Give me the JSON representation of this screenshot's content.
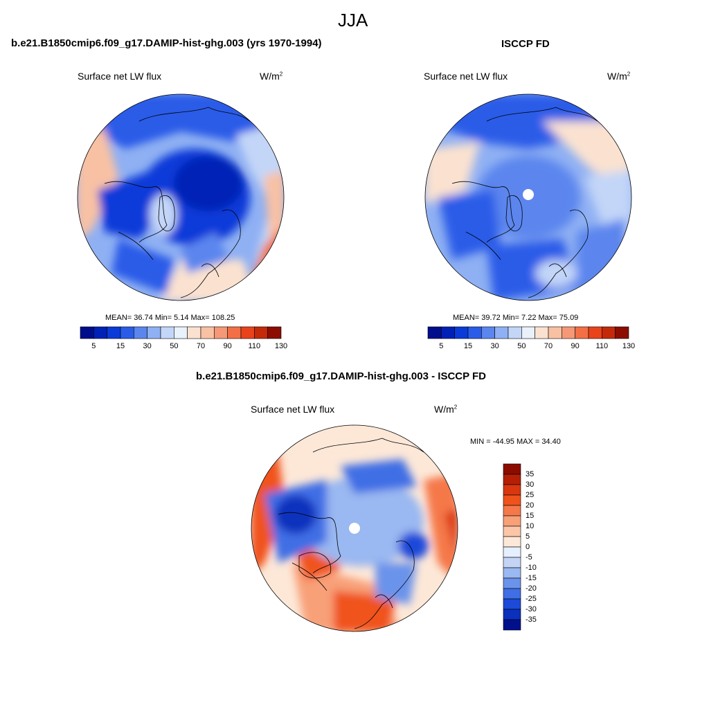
{
  "page_title": "JJA",
  "panels": [
    {
      "title": "b.e21.B1850cmip6.f09_g17.DAMIP-hist-ghg.003 (yrs 1970-1994)",
      "variable": "Surface net LW flux",
      "units": "W/m",
      "units_sup": "2",
      "stats_text": "MEAN=  36.74  Min=   5.14  Max= 108.25",
      "colorbar_ticks": [
        "5",
        "15",
        "30",
        "50",
        "70",
        "90",
        "110",
        "130"
      ]
    },
    {
      "title": "ISCCP FD",
      "variable": "Surface net LW flux",
      "units": "W/m",
      "units_sup": "2",
      "stats_text": "MEAN=  39.72  Min=   7.22  Max=  75.09",
      "colorbar_ticks": [
        "5",
        "15",
        "30",
        "50",
        "70",
        "90",
        "110",
        "130"
      ]
    },
    {
      "title": "b.e21.B1850cmip6.f09_g17.DAMIP-hist-ghg.003 - ISCCP FD",
      "variable": "Surface net LW flux",
      "units": "W/m",
      "units_sup": "2",
      "stats_text": "MIN = -44.95 MAX =  34.40",
      "colorbar_ticks": [
        "35",
        "30",
        "25",
        "20",
        "15",
        "10",
        "5",
        "0",
        "-5",
        "-10",
        "-15",
        "-20",
        "-25",
        "-30",
        "-35"
      ]
    }
  ],
  "colors": {
    "abs_scale": [
      "#000e8c",
      "#0021b6",
      "#0a3bd9",
      "#2a5ce8",
      "#5b86ee",
      "#8fb0f3",
      "#c3d6f8",
      "#e9f1fb",
      "#fbe2d0",
      "#f8c1a4",
      "#f59877",
      "#f36f46",
      "#e9431c",
      "#c42a0a",
      "#8c0d00"
    ],
    "diff_scale": [
      "#8c0d00",
      "#b51f05",
      "#d9370f",
      "#f0521c",
      "#f5784a",
      "#f8a078",
      "#fbc6a8",
      "#fde8d8",
      "#e6efff",
      "#c3d4f7",
      "#9ab8f1",
      "#6b93eb",
      "#3f6ee5",
      "#1c4ad9",
      "#0a30bd",
      "#00108c"
    ]
  }
}
